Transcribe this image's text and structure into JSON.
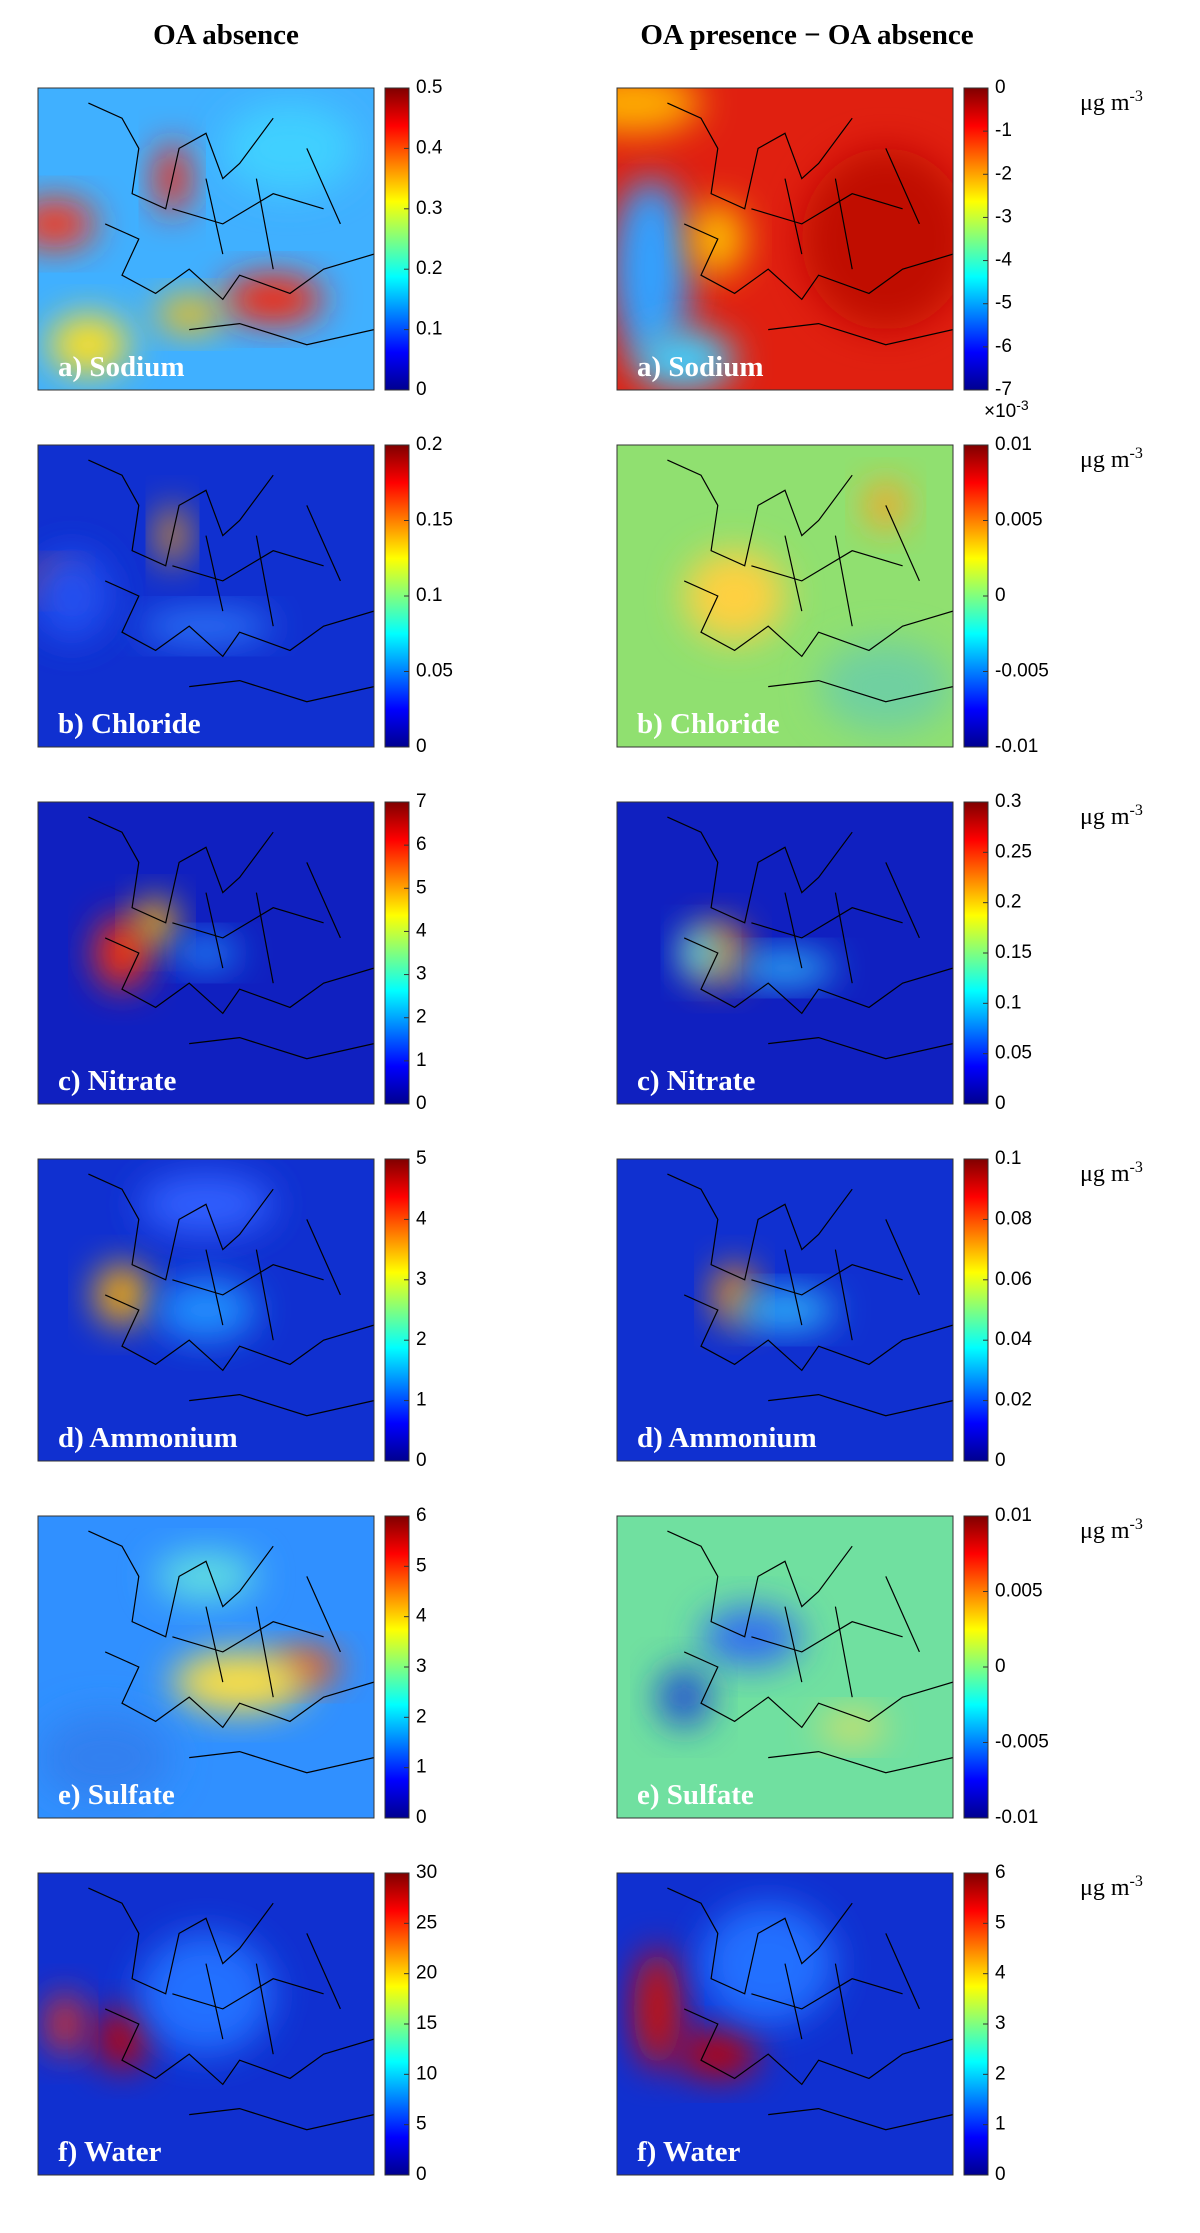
{
  "columns": [
    "OA absence",
    "OA presence − OA absence"
  ],
  "rows": [
    {
      "label": "a) Sodium",
      "absence": {
        "lim": [
          0,
          0.5
        ],
        "ticks": [
          0,
          0.1,
          0.2,
          0.3,
          0.4,
          0.5
        ]
      },
      "difference": {
        "lim": [
          -7,
          0
        ],
        "ticks": [
          -7,
          -6,
          -5,
          -4,
          -3,
          -2,
          -1,
          0
        ],
        "exponent": {
          "base": "×10",
          "power": "-3"
        }
      },
      "unit": {
        "text": "μg m",
        "power": "-3"
      }
    },
    {
      "label": "b) Chloride",
      "absence": {
        "lim": [
          0,
          0.2
        ],
        "ticks": [
          0,
          0.05,
          0.1,
          0.15,
          0.2
        ]
      },
      "difference": {
        "lim": [
          -0.01,
          0.01
        ],
        "ticks": [
          -0.01,
          -0.005,
          0,
          0.005,
          0.01
        ]
      },
      "unit": {
        "text": "μg m",
        "power": "-3"
      }
    },
    {
      "label": "c) Nitrate",
      "absence": {
        "lim": [
          0,
          7
        ],
        "ticks": [
          0,
          1,
          2,
          3,
          4,
          5,
          6,
          7
        ]
      },
      "difference": {
        "lim": [
          0,
          0.3
        ],
        "ticks": [
          0,
          0.05,
          0.1,
          0.15,
          0.2,
          0.25,
          0.3
        ]
      },
      "unit": {
        "text": "μg m",
        "power": "-3"
      }
    },
    {
      "label": "d) Ammonium",
      "absence": {
        "lim": [
          0,
          5
        ],
        "ticks": [
          0,
          1,
          2,
          3,
          4,
          5
        ]
      },
      "difference": {
        "lim": [
          0,
          0.1
        ],
        "ticks": [
          0,
          0.02,
          0.04,
          0.06,
          0.08,
          0.1
        ]
      },
      "unit": {
        "text": "μg m",
        "power": "-3"
      }
    },
    {
      "label": "e) Sulfate",
      "absence": {
        "lim": [
          0,
          6
        ],
        "ticks": [
          0,
          1,
          2,
          3,
          4,
          5,
          6
        ]
      },
      "difference": {
        "lim": [
          -0.01,
          0.01
        ],
        "ticks": [
          -0.01,
          -0.005,
          0,
          0.005,
          0.01
        ]
      },
      "unit": {
        "text": "μg m",
        "power": "-3"
      }
    },
    {
      "label": "f) Water",
      "absence": {
        "lim": [
          0,
          30
        ],
        "ticks": [
          0,
          5,
          10,
          15,
          20,
          25,
          30
        ]
      },
      "difference": {
        "lim": [
          0,
          6
        ],
        "ticks": [
          0,
          1,
          2,
          3,
          4,
          5,
          6
        ]
      },
      "unit": {
        "text": "μg m",
        "power": "-3"
      }
    }
  ]
}
